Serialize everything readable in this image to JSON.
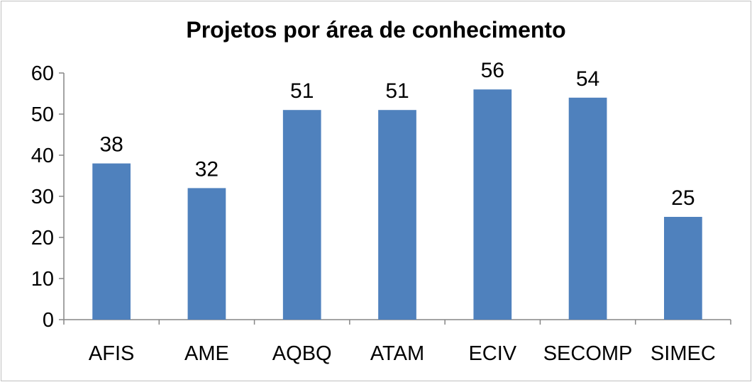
{
  "chart_data": {
    "type": "bar",
    "title": "Projetos por área de conhecimento",
    "categories": [
      "AFIS",
      "AME",
      "AQBQ",
      "ATAM",
      "ECIV",
      "SECOMP",
      "SIMEC"
    ],
    "values": [
      38,
      32,
      51,
      51,
      56,
      54,
      25
    ],
    "data_labels": [
      "38",
      "32",
      "51",
      "51",
      "56",
      "54",
      "25"
    ],
    "y_ticks": [
      "0",
      "10",
      "20",
      "30",
      "40",
      "50",
      "60"
    ],
    "ylim": [
      0,
      60
    ],
    "xlabel": "",
    "ylabel": "",
    "grid": false,
    "legend": "none",
    "bar_color": "#4f81bd",
    "axis_color": "#868686"
  }
}
